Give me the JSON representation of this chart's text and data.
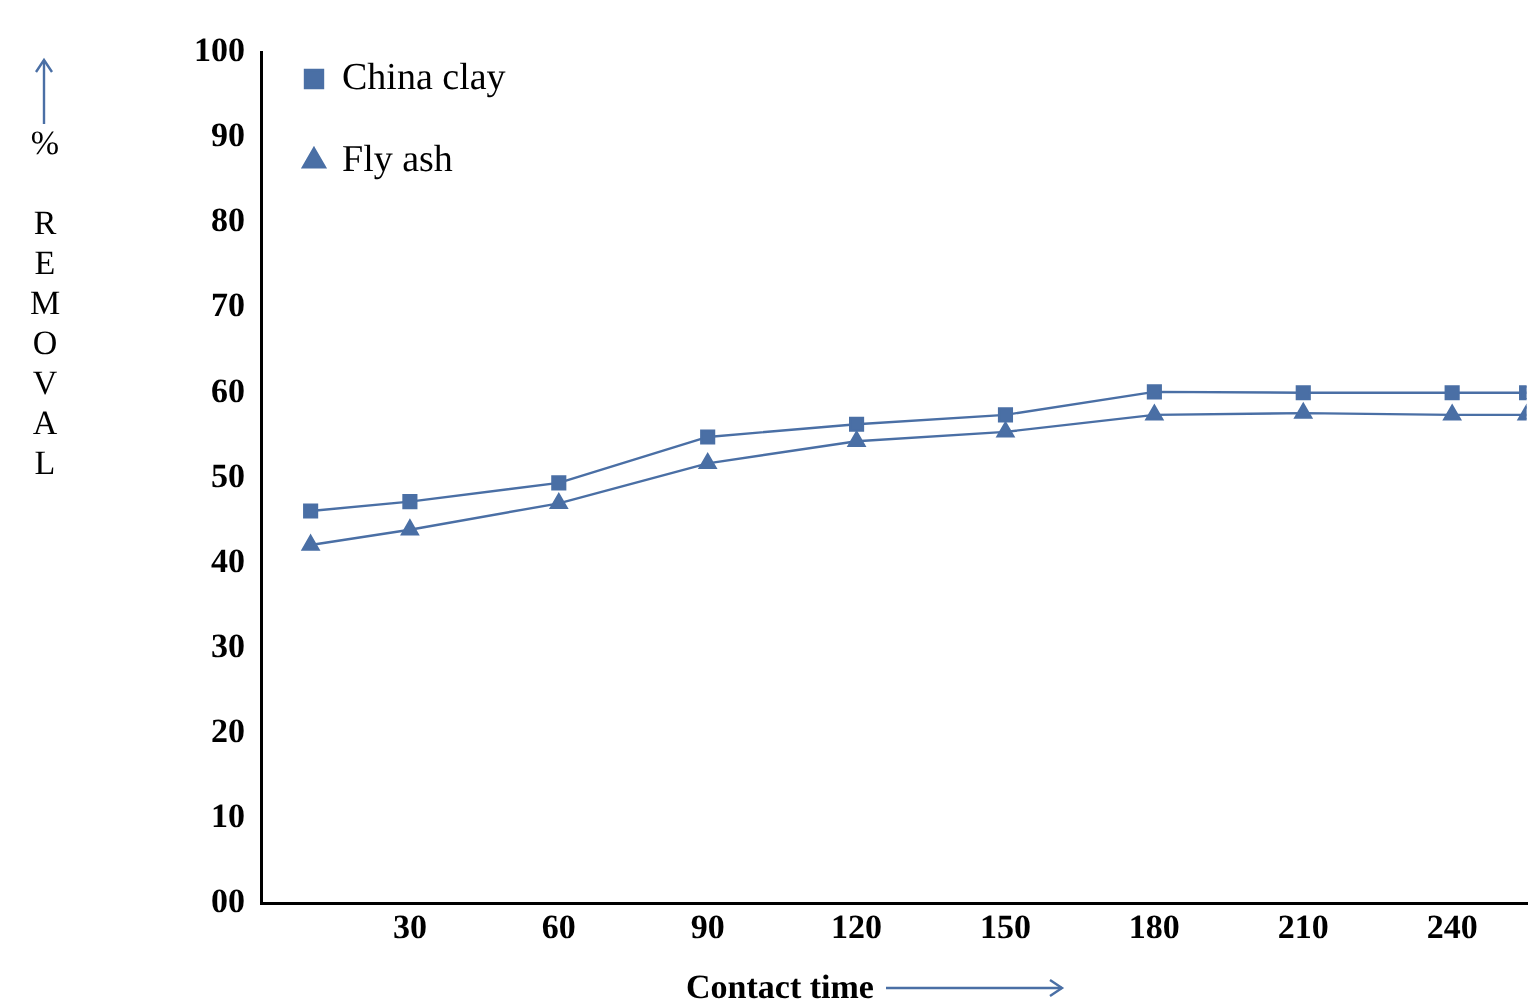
{
  "chart_data": {
    "type": "line",
    "xlabel": "Contact time",
    "ylabel": "% REMOVAL",
    "series": [
      {
        "name": "China clay",
        "color": "#4a6fa5",
        "marker": "square",
        "x": [
          10,
          30,
          60,
          90,
          120,
          150,
          180,
          210,
          240,
          255
        ],
        "values": [
          46.1,
          47.2,
          49.4,
          54.8,
          56.3,
          57.4,
          60.1,
          60,
          60,
          60
        ]
      },
      {
        "name": "Fly ash",
        "color": "#4a6fa5",
        "marker": "triangle",
        "x": [
          10,
          30,
          60,
          90,
          120,
          150,
          180,
          210,
          240,
          255
        ],
        "values": [
          42.1,
          43.9,
          47,
          51.7,
          54.3,
          55.4,
          57.4,
          57.6,
          57.4,
          57.4
        ]
      }
    ],
    "xlim": [
      0,
      255
    ],
    "xticks": [
      30,
      60,
      90,
      120,
      150,
      180,
      210,
      240
    ],
    "ylim": [
      0,
      100
    ],
    "yticks": [
      {
        "value": 0,
        "label": "00"
      },
      10,
      20,
      30,
      40,
      50,
      60,
      70,
      80,
      90,
      100
    ],
    "grid": false,
    "legend": "top left"
  }
}
